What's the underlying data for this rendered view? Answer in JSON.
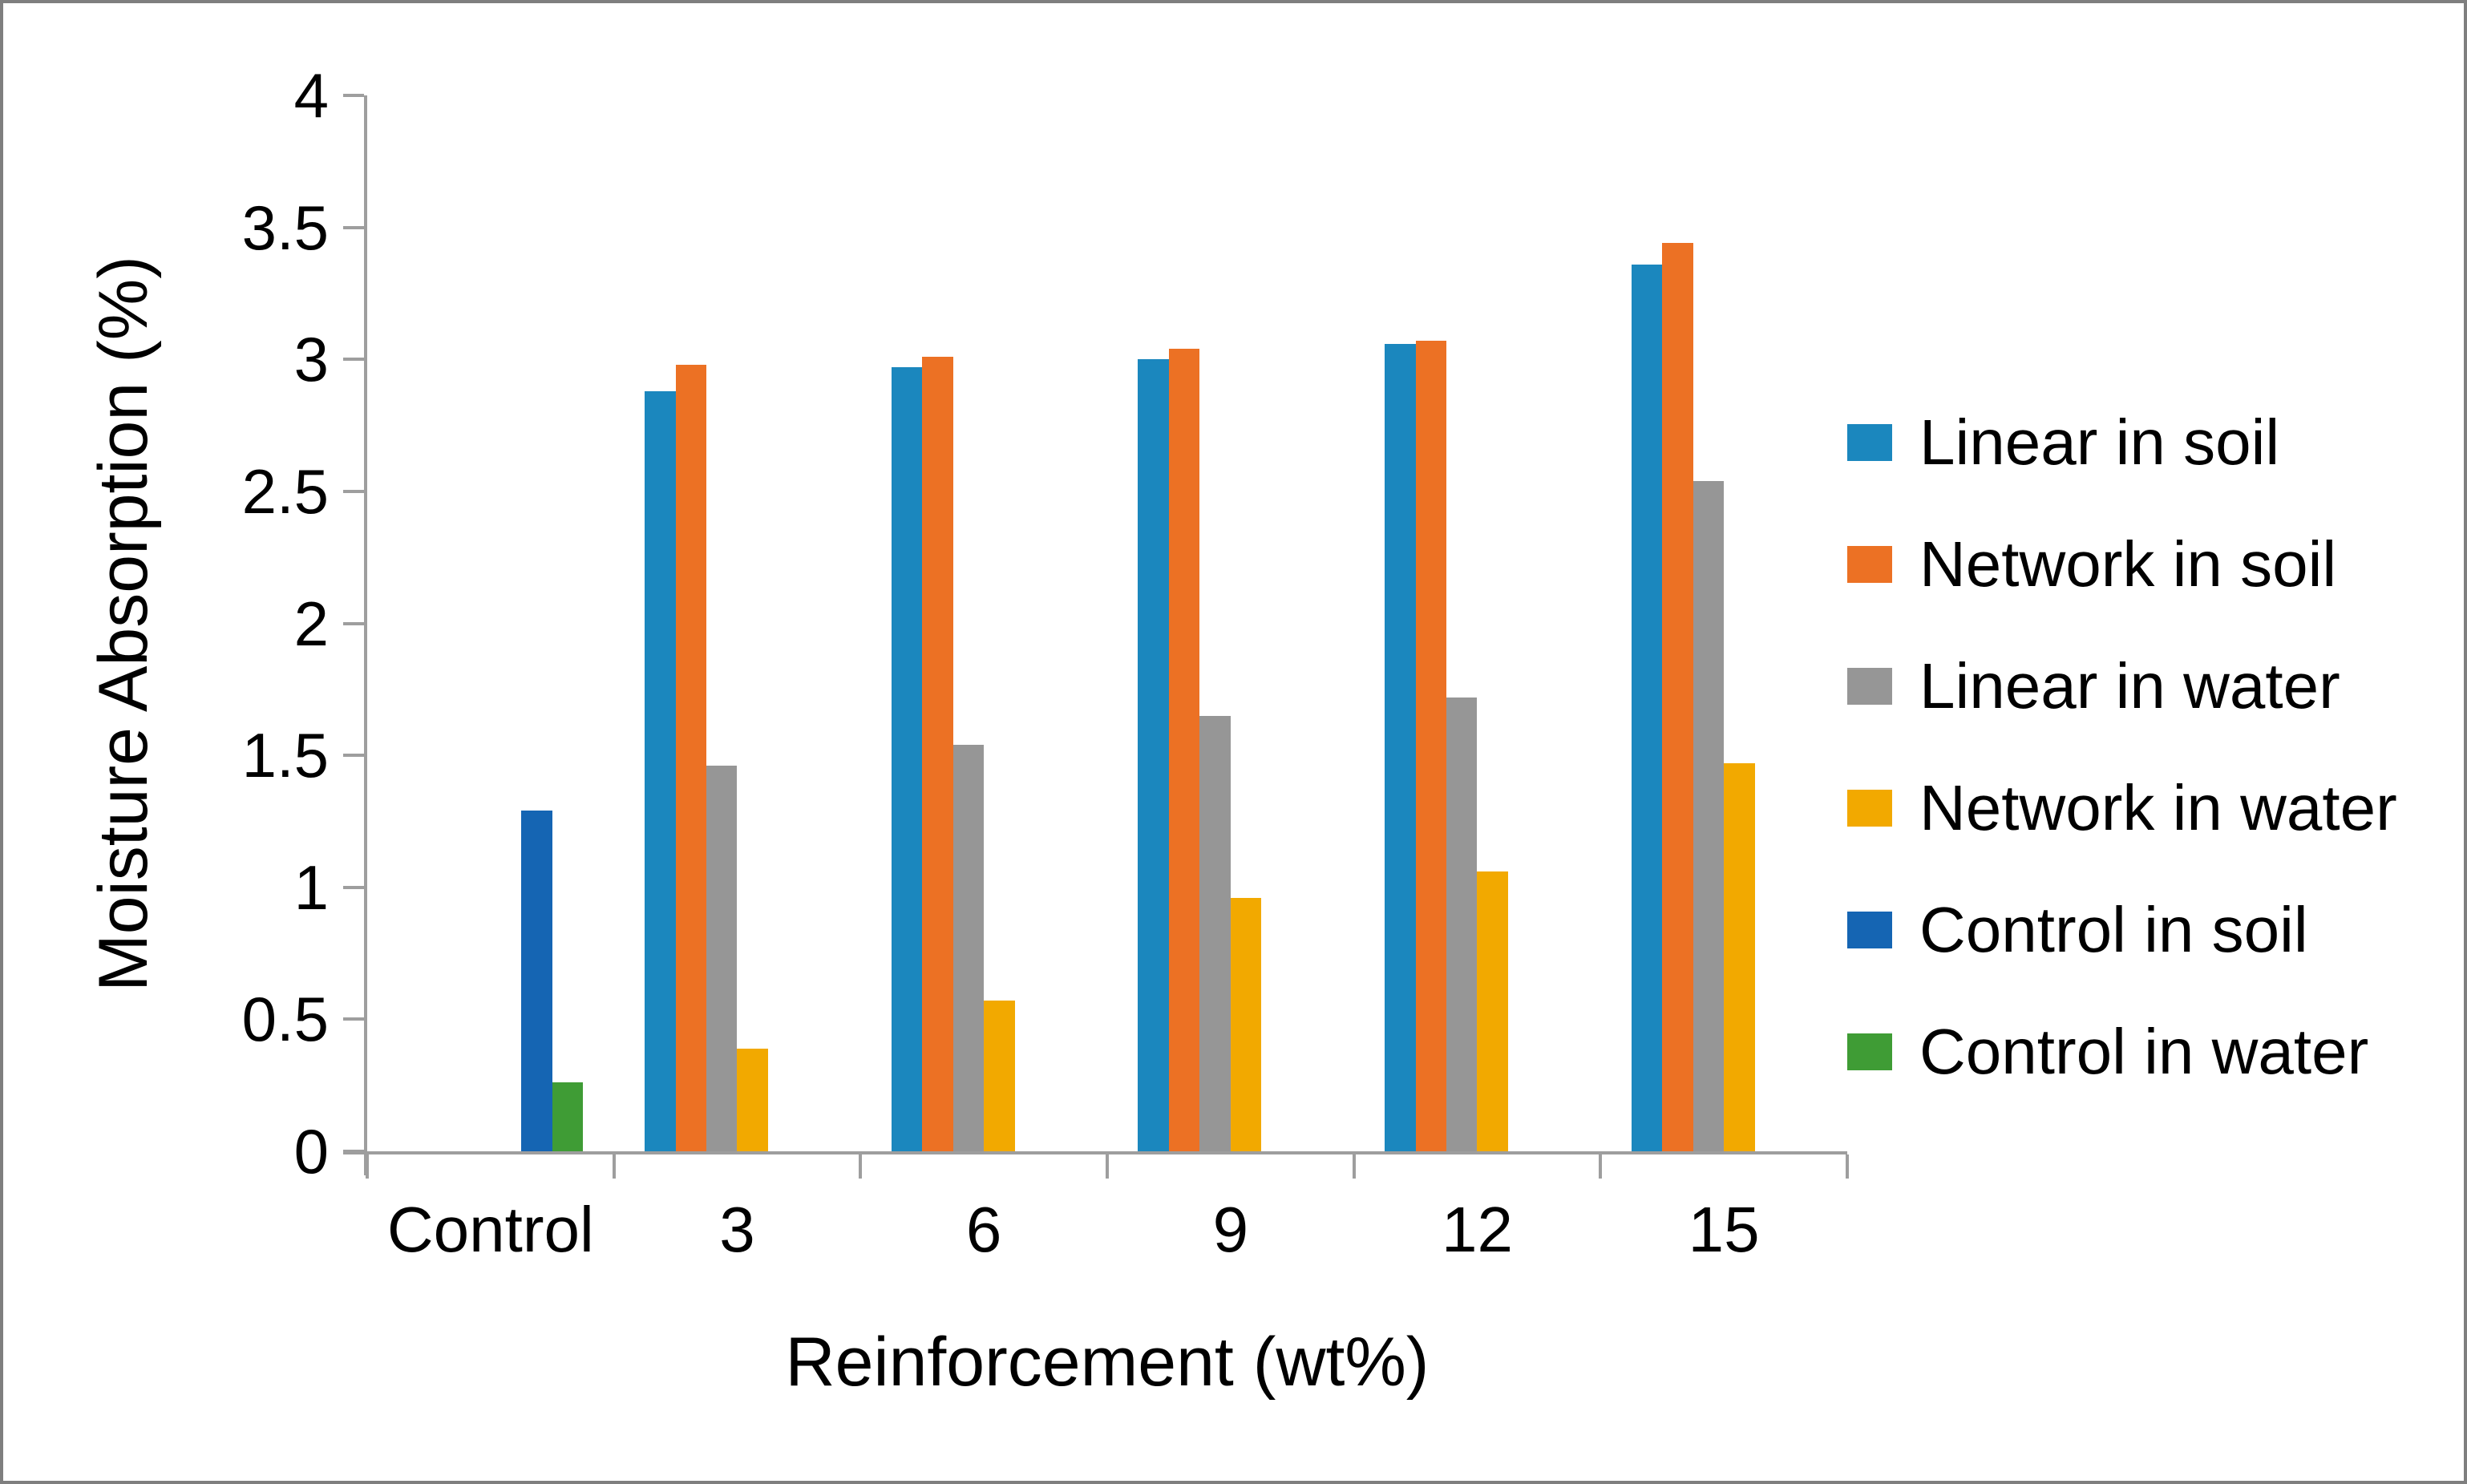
{
  "figure": {
    "background": "#ffffff",
    "border_color": "#7f7f7f",
    "axis_color": "#9e9e9e",
    "text_color": "#000000"
  },
  "chart_data": {
    "type": "bar",
    "title": "",
    "xlabel": "Reinforcement (wt%)",
    "ylabel": "Moisture Absorption (%)",
    "categories": [
      "Control",
      "3",
      "6",
      "9",
      "12",
      "15"
    ],
    "series": [
      {
        "name": "Linear in soil",
        "color": "#1b87be",
        "values": [
          null,
          2.88,
          2.97,
          3.0,
          3.06,
          3.36
        ]
      },
      {
        "name": "Network in soil",
        "color": "#ec7124",
        "values": [
          null,
          2.98,
          3.01,
          3.04,
          3.07,
          3.44
        ]
      },
      {
        "name": "Linear in water",
        "color": "#969696",
        "values": [
          null,
          1.46,
          1.54,
          1.65,
          1.72,
          2.54
        ]
      },
      {
        "name": "Network in water",
        "color": "#f2a900",
        "values": [
          null,
          0.39,
          0.57,
          0.96,
          1.06,
          1.47
        ]
      },
      {
        "name": "Control in soil",
        "color": "#1565b3",
        "values": [
          1.29,
          null,
          null,
          null,
          null,
          null
        ]
      },
      {
        "name": "Control in water",
        "color": "#3f9c35",
        "values": [
          0.26,
          null,
          null,
          null,
          null,
          null
        ]
      }
    ],
    "ylim": [
      0,
      4
    ],
    "ytick_step": 0.5,
    "ytick_labels": [
      "4",
      "3.5",
      "3",
      "2.5",
      "2",
      "1.5",
      "1",
      "0.5",
      "0"
    ],
    "grid": false,
    "legend_position": "right"
  }
}
